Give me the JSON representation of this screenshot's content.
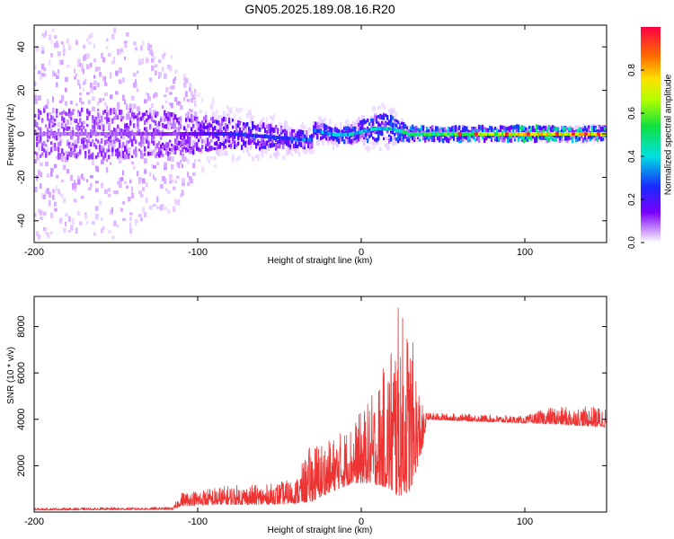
{
  "page": {
    "title": "GN05.2025.189.08.16.R20"
  },
  "chart_data": [
    {
      "type": "heatmap",
      "title": "GN05.2025.189.08.16.R20",
      "xlabel": "Height of straight line (km)",
      "ylabel": "Frequency (Hz)",
      "xlim": [
        -200,
        150
      ],
      "ylim": [
        -50,
        50
      ],
      "x_ticks": [
        -200,
        -100,
        0,
        100
      ],
      "x_tick_labels": [
        "-200",
        "-100",
        "0",
        "100"
      ],
      "y_ticks": [
        -40,
        -20,
        0,
        20,
        40
      ],
      "y_tick_labels": [
        "-40",
        "-20",
        "0",
        "20",
        "40"
      ],
      "colorbar": {
        "label": "Normalized spectral amplitude",
        "range": [
          0,
          1
        ],
        "ticks": [
          0.0,
          0.2,
          0.4,
          0.6,
          0.8
        ],
        "tick_labels": [
          "0.0",
          "0.2",
          "0.4",
          "0.6",
          "0.8"
        ],
        "colormap": [
          "#ffffff",
          "#c890ff",
          "#7a00ff",
          "#1a2aff",
          "#00e0e0",
          "#10e040",
          "#b0ff00",
          "#ffe000",
          "#ff7000",
          "#ff0044"
        ]
      },
      "band_profile": [
        {
          "x": -200,
          "halfwidth": 48,
          "core": 7,
          "amp": 0.15
        },
        {
          "x": -150,
          "halfwidth": 48,
          "core": 7,
          "amp": 0.18
        },
        {
          "x": -115,
          "halfwidth": 35,
          "core": 6,
          "amp": 0.22
        },
        {
          "x": -100,
          "halfwidth": 18,
          "core": 5,
          "amp": 0.28
        },
        {
          "x": -80,
          "halfwidth": 12,
          "core": 4,
          "amp": 0.35
        },
        {
          "x": -50,
          "halfwidth": 10,
          "core": 3,
          "amp": 0.4
        },
        {
          "x": -30,
          "halfwidth": 6,
          "core": 2,
          "amp": 0.45
        },
        {
          "x": -10,
          "halfwidth": 6,
          "core": 2,
          "amp": 0.5
        },
        {
          "x": 15,
          "halfwidth": 12,
          "core": 4,
          "amp": 0.5
        },
        {
          "x": 28,
          "halfwidth": 3,
          "core": 2,
          "amp": 0.6
        },
        {
          "x": 60,
          "halfwidth": 3,
          "core": 2,
          "amp": 0.65
        },
        {
          "x": 100,
          "halfwidth": 3,
          "core": 2,
          "amp": 0.9
        },
        {
          "x": 150,
          "halfwidth": 4,
          "core": 2,
          "amp": 0.85
        }
      ]
    },
    {
      "type": "line",
      "xlabel": "Height of straight line (km)",
      "ylabel": "SNR (10 * v/v)",
      "xlim": [
        -200,
        150
      ],
      "ylim": [
        0,
        9300
      ],
      "x_ticks": [
        -200,
        -100,
        0,
        100
      ],
      "x_tick_labels": [
        "-200",
        "-100",
        "0",
        "100"
      ],
      "y_ticks": [
        2000,
        4000,
        6000,
        8000
      ],
      "y_tick_labels": [
        "2000",
        "4000",
        "6000",
        "8000"
      ],
      "color": "#ee3333",
      "envelope": [
        {
          "x": -200,
          "base": 100,
          "amp": 80
        },
        {
          "x": -115,
          "base": 130,
          "amp": 90
        },
        {
          "x": -110,
          "base": 400,
          "amp": 500
        },
        {
          "x": -80,
          "base": 500,
          "amp": 700
        },
        {
          "x": -60,
          "base": 500,
          "amp": 700
        },
        {
          "x": -40,
          "base": 600,
          "amp": 900
        },
        {
          "x": -30,
          "base": 1000,
          "amp": 2200
        },
        {
          "x": -20,
          "base": 1300,
          "amp": 1900
        },
        {
          "x": -5,
          "base": 1800,
          "amp": 2200
        },
        {
          "x": 5,
          "base": 2000,
          "amp": 3000
        },
        {
          "x": 15,
          "base": 2200,
          "amp": 4500
        },
        {
          "x": 22,
          "base": 2400,
          "amp": 6900
        },
        {
          "x": 30,
          "base": 2400,
          "amp": 6000
        },
        {
          "x": 38,
          "base": 3200,
          "amp": 1200
        },
        {
          "x": 40,
          "base": 4050,
          "amp": 250
        },
        {
          "x": 100,
          "base": 3900,
          "amp": 250
        },
        {
          "x": 115,
          "base": 3950,
          "amp": 600
        },
        {
          "x": 150,
          "base": 3850,
          "amp": 750
        }
      ]
    }
  ]
}
